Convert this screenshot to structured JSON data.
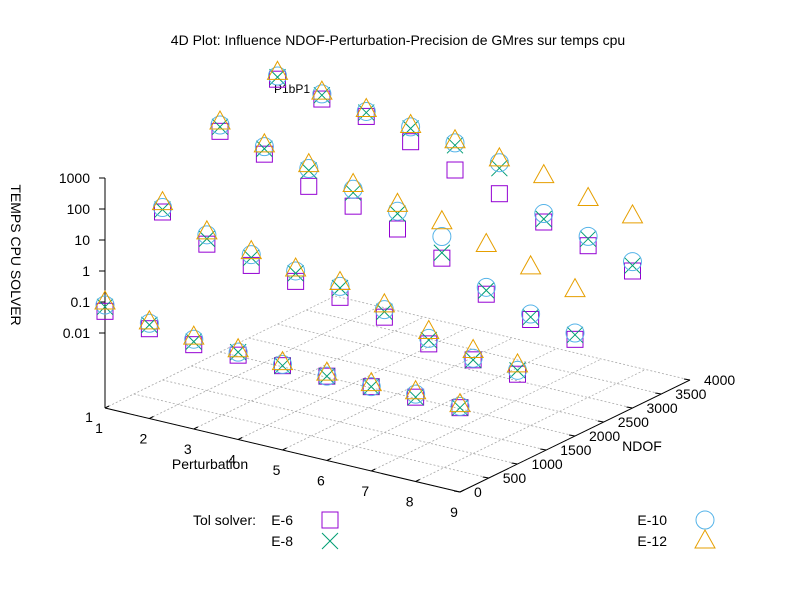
{
  "chart_data": {
    "type": "scatter",
    "title": "4D Plot: Influence NDOF-Perturbation-Precision de GMres sur temps cpu",
    "subtitle": "P1bP1",
    "x_axis": {
      "label": "Perturbation",
      "ticks": [
        "1",
        "2",
        "3",
        "4",
        "5",
        "6",
        "7",
        "8",
        "9"
      ],
      "range": [
        1,
        9
      ]
    },
    "y_axis": {
      "label": "NDOF",
      "ticks": [
        "0",
        "500",
        "1000",
        "1500",
        "2000",
        "2500",
        "3000",
        "3500",
        "4000"
      ],
      "range": [
        0,
        4000
      ]
    },
    "z_axis": {
      "label": "TEMPS CPU SOLVER",
      "scale": "log",
      "ticks": [
        "0.01",
        "0.1",
        "1",
        "10",
        "100",
        "1000"
      ],
      "range": [
        0.01,
        1000
      ]
    },
    "legend_title": "Tol solver:",
    "grid": true,
    "series": [
      {
        "name": "E-6",
        "marker": "square",
        "color": "#9400d3",
        "points": [
          {
            "x": 1,
            "y": 0,
            "z": 0.05
          },
          {
            "x": 2,
            "y": 0,
            "z": 0.03
          },
          {
            "x": 3,
            "y": 0,
            "z": 0.02
          },
          {
            "x": 4,
            "y": 0,
            "z": 0.02
          },
          {
            "x": 5,
            "y": 0,
            "z": 0.02
          },
          {
            "x": 6,
            "y": 0,
            "z": 0.02
          },
          {
            "x": 7,
            "y": 0,
            "z": 0.02
          },
          {
            "x": 8,
            "y": 0,
            "z": 0.02
          },
          {
            "x": 9,
            "y": 0,
            "z": 0.02
          },
          {
            "x": 1,
            "y": 1000,
            "z": 10
          },
          {
            "x": 2,
            "y": 1000,
            "z": 2
          },
          {
            "x": 3,
            "y": 1000,
            "z": 0.9
          },
          {
            "x": 4,
            "y": 1000,
            "z": 0.6
          },
          {
            "x": 5,
            "y": 1000,
            "z": 0.4
          },
          {
            "x": 6,
            "y": 1000,
            "z": 0.2
          },
          {
            "x": 7,
            "y": 1000,
            "z": 0.06
          },
          {
            "x": 8,
            "y": 1000,
            "z": 0.04
          },
          {
            "x": 9,
            "y": 1000,
            "z": 0.03
          },
          {
            "x": 1,
            "y": 2000,
            "z": 500
          },
          {
            "x": 2,
            "y": 2000,
            "z": 200
          },
          {
            "x": 3,
            "y": 2000,
            "z": 40
          },
          {
            "x": 4,
            "y": 2000,
            "z": 20
          },
          {
            "x": 5,
            "y": 2000,
            "z": 8
          },
          {
            "x": 6,
            "y": 2000,
            "z": 2
          },
          {
            "x": 7,
            "y": 2000,
            "z": 0.3
          },
          {
            "x": 8,
            "y": 2000,
            "z": 0.1
          },
          {
            "x": 9,
            "y": 2000,
            "z": 0.05
          },
          {
            "x": 1,
            "y": 3000,
            "z": 3000
          },
          {
            "x": 2,
            "y": 3000,
            "z": 1500
          },
          {
            "x": 3,
            "y": 3000,
            "z": 900
          },
          {
            "x": 4,
            "y": 3000,
            "z": 300
          },
          {
            "x": 5,
            "y": 3000,
            "z": 80
          },
          {
            "x": 6,
            "y": 3000,
            "z": 30
          },
          {
            "x": 7,
            "y": 3000,
            "z": 8
          },
          {
            "x": 8,
            "y": 3000,
            "z": 3
          },
          {
            "x": 9,
            "y": 3000,
            "z": 1
          }
        ]
      },
      {
        "name": "E-8",
        "marker": "x",
        "color": "#009e73",
        "points": [
          {
            "x": 1,
            "y": 0,
            "z": 0.07
          },
          {
            "x": 2,
            "y": 0,
            "z": 0.04
          },
          {
            "x": 3,
            "y": 0,
            "z": 0.025
          },
          {
            "x": 4,
            "y": 0,
            "z": 0.025
          },
          {
            "x": 5,
            "y": 0,
            "z": 0.02
          },
          {
            "x": 6,
            "y": 0,
            "z": 0.02
          },
          {
            "x": 7,
            "y": 0,
            "z": 0.02
          },
          {
            "x": 8,
            "y": 0,
            "z": 0.02
          },
          {
            "x": 9,
            "y": 0,
            "z": 0.02
          },
          {
            "x": 1,
            "y": 1000,
            "z": 12
          },
          {
            "x": 2,
            "y": 1000,
            "z": 3
          },
          {
            "x": 3,
            "y": 1000,
            "z": 1.6
          },
          {
            "x": 4,
            "y": 1000,
            "z": 1.1
          },
          {
            "x": 5,
            "y": 1000,
            "z": 0.8
          },
          {
            "x": 6,
            "y": 1000,
            "z": 0.3
          },
          {
            "x": 7,
            "y": 1000,
            "z": 0.08
          },
          {
            "x": 8,
            "y": 1000,
            "z": 0.04
          },
          {
            "x": 9,
            "y": 1000,
            "z": 0.04
          },
          {
            "x": 1,
            "y": 2000,
            "z": 700
          },
          {
            "x": 2,
            "y": 2000,
            "z": 300
          },
          {
            "x": 3,
            "y": 2000,
            "z": 130
          },
          {
            "x": 4,
            "y": 2000,
            "z": 55
          },
          {
            "x": 5,
            "y": 2000,
            "z": 25
          },
          {
            "x": 6,
            "y": 2000,
            "z": 3
          },
          {
            "x": 7,
            "y": 2000,
            "z": 0.4
          },
          {
            "x": 8,
            "y": 2000,
            "z": 0.12
          },
          {
            "x": 9,
            "y": 2000,
            "z": 0.07
          },
          {
            "x": 1,
            "y": 3000,
            "z": 3500
          },
          {
            "x": 2,
            "y": 3000,
            "z": 2000
          },
          {
            "x": 3,
            "y": 3000,
            "z": 1200
          },
          {
            "x": 4,
            "y": 3000,
            "z": 800
          },
          {
            "x": 5,
            "y": 3000,
            "z": 500
          },
          {
            "x": 6,
            "y": 3000,
            "z": 200
          },
          {
            "x": 7,
            "y": 3000,
            "z": 10
          },
          {
            "x": 8,
            "y": 3000,
            "z": 5
          },
          {
            "x": 9,
            "y": 3000,
            "z": 1.5
          }
        ]
      },
      {
        "name": "E-10",
        "marker": "circle",
        "color": "#56b4e9",
        "points": [
          {
            "x": 1,
            "y": 0,
            "z": 0.08
          },
          {
            "x": 2,
            "y": 0,
            "z": 0.045
          },
          {
            "x": 3,
            "y": 0,
            "z": 0.03
          },
          {
            "x": 4,
            "y": 0,
            "z": 0.025
          },
          {
            "x": 5,
            "y": 0,
            "z": 0.022
          },
          {
            "x": 6,
            "y": 0,
            "z": 0.02
          },
          {
            "x": 7,
            "y": 0,
            "z": 0.02
          },
          {
            "x": 8,
            "y": 0,
            "z": 0.025
          },
          {
            "x": 9,
            "y": 0,
            "z": 0.022
          },
          {
            "x": 1,
            "y": 1000,
            "z": 14
          },
          {
            "x": 2,
            "y": 1000,
            "z": 4
          },
          {
            "x": 3,
            "y": 1000,
            "z": 2
          },
          {
            "x": 4,
            "y": 1000,
            "z": 1.3
          },
          {
            "x": 5,
            "y": 1000,
            "z": 0.9
          },
          {
            "x": 6,
            "y": 1000,
            "z": 0.35
          },
          {
            "x": 7,
            "y": 1000,
            "z": 0.09
          },
          {
            "x": 8,
            "y": 1000,
            "z": 0.045
          },
          {
            "x": 9,
            "y": 1000,
            "z": 0.04
          },
          {
            "x": 1,
            "y": 2000,
            "z": 800
          },
          {
            "x": 2,
            "y": 2000,
            "z": 350
          },
          {
            "x": 3,
            "y": 2000,
            "z": 150
          },
          {
            "x": 4,
            "y": 2000,
            "z": 70
          },
          {
            "x": 5,
            "y": 2000,
            "z": 30
          },
          {
            "x": 6,
            "y": 2000,
            "z": 10
          },
          {
            "x": 7,
            "y": 2000,
            "z": 0.5
          },
          {
            "x": 8,
            "y": 2000,
            "z": 0.15
          },
          {
            "x": 9,
            "y": 2000,
            "z": 0.08
          },
          {
            "x": 1,
            "y": 3000,
            "z": 3800
          },
          {
            "x": 2,
            "y": 3000,
            "z": 2200
          },
          {
            "x": 3,
            "y": 3000,
            "z": 1300
          },
          {
            "x": 4,
            "y": 3000,
            "z": 900
          },
          {
            "x": 5,
            "y": 3000,
            "z": 600
          },
          {
            "x": 6,
            "y": 3000,
            "z": 300
          },
          {
            "x": 7,
            "y": 3000,
            "z": 15
          },
          {
            "x": 8,
            "y": 3000,
            "z": 6
          },
          {
            "x": 9,
            "y": 3000,
            "z": 2
          }
        ]
      },
      {
        "name": "E-12",
        "marker": "triangle",
        "color": "#e69f00",
        "points": [
          {
            "x": 1,
            "y": 0,
            "z": 0.1
          },
          {
            "x": 2,
            "y": 0,
            "z": 0.05
          },
          {
            "x": 3,
            "y": 0,
            "z": 0.035
          },
          {
            "x": 4,
            "y": 0,
            "z": 0.03
          },
          {
            "x": 5,
            "y": 0,
            "z": 0.025
          },
          {
            "x": 6,
            "y": 0,
            "z": 0.025
          },
          {
            "x": 7,
            "y": 0,
            "z": 0.025
          },
          {
            "x": 8,
            "y": 0,
            "z": 0.03
          },
          {
            "x": 9,
            "y": 0,
            "z": 0.025
          },
          {
            "x": 1,
            "y": 1000,
            "z": 20
          },
          {
            "x": 2,
            "y": 1000,
            "z": 5
          },
          {
            "x": 3,
            "y": 1000,
            "z": 2.5
          },
          {
            "x": 4,
            "y": 1000,
            "z": 1.5
          },
          {
            "x": 5,
            "y": 1000,
            "z": 1.2
          },
          {
            "x": 6,
            "y": 1000,
            "z": 0.5
          },
          {
            "x": 7,
            "y": 1000,
            "z": 0.15
          },
          {
            "x": 8,
            "y": 1000,
            "z": 0.08
          },
          {
            "x": 9,
            "y": 1000,
            "z": 0.06
          },
          {
            "x": 1,
            "y": 2000,
            "z": 1000
          },
          {
            "x": 2,
            "y": 2000,
            "z": 400
          },
          {
            "x": 3,
            "y": 2000,
            "z": 200
          },
          {
            "x": 4,
            "y": 2000,
            "z": 100
          },
          {
            "x": 5,
            "y": 2000,
            "z": 50
          },
          {
            "x": 6,
            "y": 2000,
            "z": 30
          },
          {
            "x": 7,
            "y": 2000,
            "z": 12
          },
          {
            "x": 8,
            "y": 2000,
            "z": 5
          },
          {
            "x": 9,
            "y": 2000,
            "z": 2
          },
          {
            "x": 1,
            "y": 3000,
            "z": 5000
          },
          {
            "x": 2,
            "y": 3000,
            "z": 2500
          },
          {
            "x": 3,
            "y": 3000,
            "z": 1500
          },
          {
            "x": 4,
            "y": 3000,
            "z": 1000
          },
          {
            "x": 5,
            "y": 3000,
            "z": 700
          },
          {
            "x": 6,
            "y": 3000,
            "z": 400
          },
          {
            "x": 7,
            "y": 3000,
            "z": 250
          },
          {
            "x": 8,
            "y": 3000,
            "z": 100
          },
          {
            "x": 9,
            "y": 3000,
            "z": 60
          }
        ]
      }
    ]
  }
}
